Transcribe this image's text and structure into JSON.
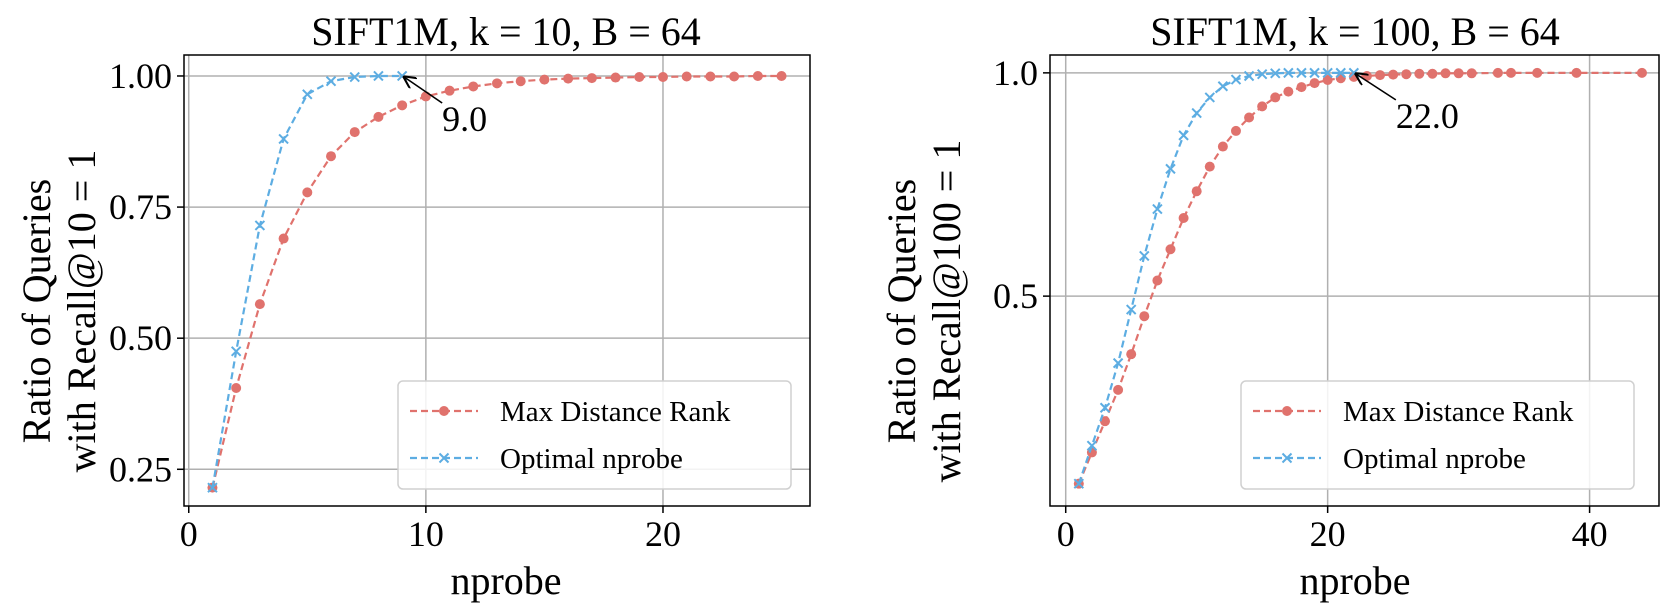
{
  "chart_data": [
    {
      "type": "line",
      "title": "SIFT1M, k = 10, B = 64",
      "xlabel": "nprobe",
      "ylabel": [
        "Ratio of Queries",
        "with Recall@10 = 1"
      ],
      "xlim": [
        -0.2,
        26.2
      ],
      "ylim": [
        0.18,
        1.04
      ],
      "xticks": [
        0,
        10,
        20
      ],
      "xtick_labels": [
        "0",
        "10",
        "20"
      ],
      "yticks": [
        0.25,
        0.5,
        0.75,
        1.0
      ],
      "ytick_labels": [
        "0.25",
        "0.50",
        "0.75",
        "1.00"
      ],
      "grid": true,
      "legend": "lower-right",
      "series": [
        {
          "name": "Max Distance Rank",
          "color": "#e0726d",
          "marker": "circle",
          "linestyle": "dashed",
          "x": [
            1,
            2,
            3,
            4,
            5,
            6,
            7,
            8,
            9,
            10,
            11,
            12,
            13,
            14,
            15,
            16,
            17,
            18,
            19,
            20,
            21,
            22,
            23,
            24,
            25
          ],
          "y": [
            0.215,
            0.405,
            0.565,
            0.69,
            0.778,
            0.847,
            0.893,
            0.922,
            0.944,
            0.961,
            0.972,
            0.98,
            0.986,
            0.99,
            0.993,
            0.995,
            0.996,
            0.997,
            0.998,
            0.998,
            0.999,
            0.999,
            0.999,
            1.0,
            1.0
          ]
        },
        {
          "name": "Optimal nprobe",
          "color": "#5dade2",
          "marker": "x",
          "linestyle": "dashed",
          "x": [
            1,
            2,
            3,
            4,
            5,
            6,
            7,
            8,
            9
          ],
          "y": [
            0.215,
            0.475,
            0.715,
            0.88,
            0.965,
            0.99,
            0.998,
            1.0,
            1.0
          ]
        }
      ],
      "annotations": [
        {
          "text": "9.0",
          "x": 9,
          "y": 1.0
        }
      ]
    },
    {
      "type": "line",
      "title": "SIFT1M, k = 100, B = 64",
      "xlabel": "nprobe",
      "ylabel": [
        "Ratio of Queries",
        "with Recall@100 = 1"
      ],
      "xlim": [
        -1.2,
        45.3
      ],
      "ylim": [
        0.03,
        1.04
      ],
      "xticks": [
        0,
        20,
        40
      ],
      "xtick_labels": [
        "0",
        "20",
        "40"
      ],
      "yticks": [
        0.5,
        1.0
      ],
      "ytick_labels": [
        "0.5",
        "1.0"
      ],
      "grid": true,
      "legend": "lower-right",
      "series": [
        {
          "name": "Max Distance Rank",
          "color": "#e0726d",
          "marker": "circle",
          "linestyle": "dashed",
          "x": [
            1,
            2,
            3,
            4,
            5,
            6,
            7,
            8,
            9,
            10,
            11,
            12,
            13,
            14,
            15,
            16,
            17,
            18,
            19,
            20,
            21,
            22,
            23,
            24,
            25,
            26,
            27,
            28,
            29,
            30,
            31,
            33,
            34,
            36,
            39,
            44
          ],
          "y": [
            0.08,
            0.15,
            0.22,
            0.29,
            0.37,
            0.455,
            0.535,
            0.605,
            0.675,
            0.735,
            0.79,
            0.835,
            0.87,
            0.9,
            0.925,
            0.945,
            0.958,
            0.968,
            0.977,
            0.984,
            0.988,
            0.991,
            0.993,
            0.995,
            0.996,
            0.997,
            0.998,
            0.998,
            0.999,
            0.999,
            0.999,
            1.0,
            1.0,
            1.0,
            1.0,
            1.0
          ]
        },
        {
          "name": "Optimal nprobe",
          "color": "#5dade2",
          "marker": "x",
          "linestyle": "dashed",
          "x": [
            1,
            2,
            3,
            4,
            5,
            6,
            7,
            8,
            9,
            10,
            11,
            12,
            13,
            14,
            15,
            16,
            17,
            18,
            19,
            20,
            21,
            22
          ],
          "y": [
            0.08,
            0.165,
            0.25,
            0.35,
            0.47,
            0.59,
            0.695,
            0.785,
            0.86,
            0.91,
            0.945,
            0.97,
            0.985,
            0.993,
            0.997,
            0.999,
            1.0,
            1.0,
            1.0,
            1.0,
            1.0,
            1.0
          ]
        }
      ],
      "annotations": [
        {
          "text": "22.0",
          "x": 22,
          "y": 1.0
        }
      ]
    }
  ]
}
